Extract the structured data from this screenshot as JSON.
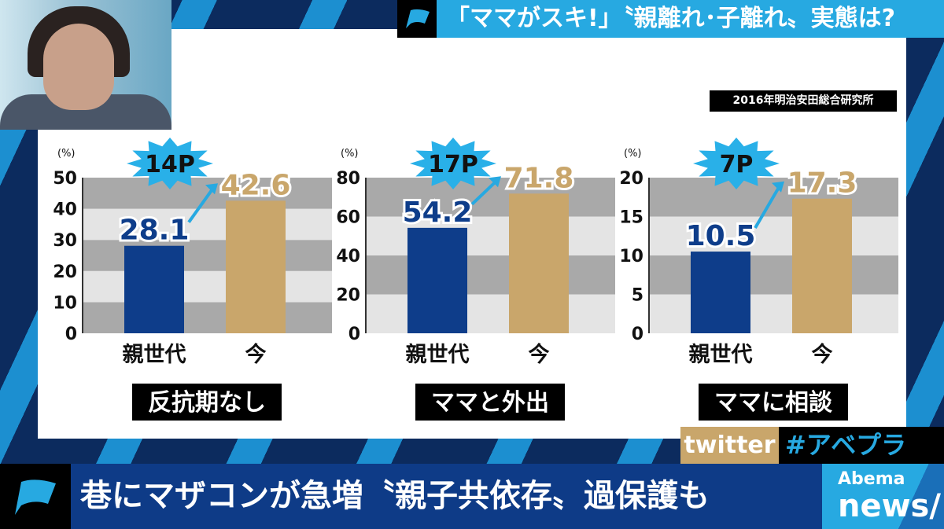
{
  "header": {
    "title": "「ママがスキ!」〝親離れ･子離れ〟実態は?"
  },
  "source": "2016年明治安田総合研究所",
  "social": {
    "twitter": "twitter",
    "hashtag": "#アベプラ"
  },
  "ticker": {
    "headline": "巷にマザコンが急増〝親子共依存〟過保護も"
  },
  "logo": {
    "top": "Abema",
    "bottom": "news/"
  },
  "colors": {
    "parent": "#0e3d8a",
    "now": "#c9a66b",
    "accent": "#27a9e1",
    "badge": "#29b0e8"
  },
  "chart_data": [
    {
      "type": "bar",
      "title": "反抗期なし",
      "ylabel": "(%)",
      "categories": [
        "親世代",
        "今"
      ],
      "values": [
        28.1,
        42.6
      ],
      "ylim": [
        0,
        50
      ],
      "ticks": [
        0,
        10,
        20,
        30,
        40,
        50
      ],
      "badge": "14P",
      "value_labels": [
        "28.1",
        "42.6"
      ]
    },
    {
      "type": "bar",
      "title": "ママと外出",
      "ylabel": "(%)",
      "categories": [
        "親世代",
        "今"
      ],
      "values": [
        54.2,
        71.8
      ],
      "ylim": [
        0,
        80
      ],
      "ticks": [
        0,
        20,
        40,
        60,
        80
      ],
      "badge": "17P",
      "value_labels": [
        "54.2",
        "71.8"
      ]
    },
    {
      "type": "bar",
      "title": "ママに相談",
      "ylabel": "(%)",
      "categories": [
        "親世代",
        "今"
      ],
      "values": [
        10.5,
        17.3
      ],
      "ylim": [
        0,
        20
      ],
      "ticks": [
        0,
        5,
        10,
        15,
        20
      ],
      "badge": "7P",
      "value_labels": [
        "10.5",
        "17.3"
      ]
    }
  ]
}
